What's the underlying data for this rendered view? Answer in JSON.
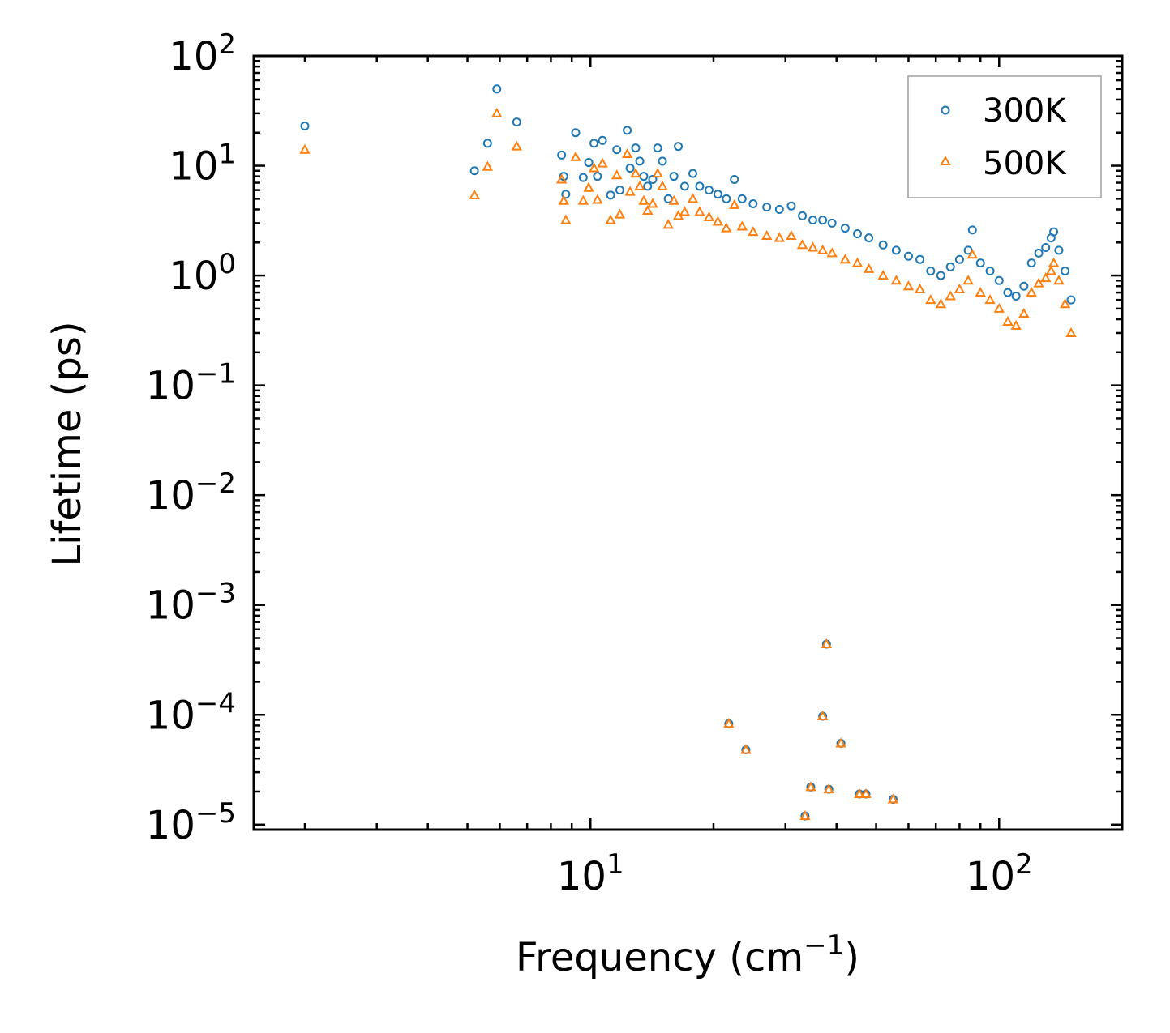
{
  "chart_data": {
    "type": "scatter",
    "xscale": "log",
    "yscale": "log",
    "xlabel": "Frequency (cm",
    "xlabel_sup": "−1",
    "xlabel_tail": ")",
    "ylabel": "Lifetime (ps)",
    "xlim": [
      1.5,
      200
    ],
    "ylim": [
      9e-06,
      100
    ],
    "grid": false,
    "legend_position": "top-right",
    "x_ticks": [
      {
        "value": 10,
        "base": "10",
        "exp": "1"
      },
      {
        "value": 100,
        "base": "10",
        "exp": "2"
      }
    ],
    "y_ticks": [
      {
        "value": 100,
        "base": "10",
        "exp": "2"
      },
      {
        "value": 10,
        "base": "10",
        "exp": "1"
      },
      {
        "value": 1,
        "base": "10",
        "exp": "0"
      },
      {
        "value": 0.1,
        "base": "10",
        "exp": "−1"
      },
      {
        "value": 0.01,
        "base": "10",
        "exp": "−2"
      },
      {
        "value": 0.001,
        "base": "10",
        "exp": "−3"
      },
      {
        "value": 0.0001,
        "base": "10",
        "exp": "−4"
      },
      {
        "value": 1e-05,
        "base": "10",
        "exp": "−5"
      }
    ],
    "series": [
      {
        "name": "300K",
        "color": "#1f77b4",
        "marker": "circle",
        "points": [
          [
            2.0,
            23
          ],
          [
            5.2,
            9.0
          ],
          [
            5.6,
            16
          ],
          [
            5.9,
            50
          ],
          [
            6.6,
            25
          ],
          [
            8.5,
            12.5
          ],
          [
            8.6,
            8
          ],
          [
            8.7,
            5.5
          ],
          [
            9.2,
            20
          ],
          [
            9.6,
            7.8
          ],
          [
            9.9,
            10.7
          ],
          [
            10.2,
            16
          ],
          [
            10.4,
            8
          ],
          [
            10.7,
            17
          ],
          [
            11.2,
            5.4
          ],
          [
            11.6,
            14
          ],
          [
            11.8,
            6
          ],
          [
            12.3,
            21
          ],
          [
            12.5,
            9.5
          ],
          [
            12.9,
            14.5
          ],
          [
            13.2,
            11
          ],
          [
            13.5,
            8
          ],
          [
            13.8,
            6.5
          ],
          [
            14.2,
            7.5
          ],
          [
            14.6,
            14.5
          ],
          [
            15.0,
            11
          ],
          [
            15.5,
            5
          ],
          [
            16.0,
            8
          ],
          [
            16.4,
            15
          ],
          [
            17.0,
            6.5
          ],
          [
            17.8,
            8.5
          ],
          [
            18.5,
            6.5
          ],
          [
            19.5,
            6
          ],
          [
            20.5,
            5.5
          ],
          [
            21.5,
            5
          ],
          [
            22.5,
            7.5
          ],
          [
            23.5,
            5
          ],
          [
            25,
            4.5
          ],
          [
            27,
            4.2
          ],
          [
            29,
            4
          ],
          [
            31,
            4.3
          ],
          [
            33,
            3.5
          ],
          [
            35,
            3.2
          ],
          [
            37,
            3.2
          ],
          [
            39,
            3
          ],
          [
            42,
            2.7
          ],
          [
            45,
            2.4
          ],
          [
            48,
            2.2
          ],
          [
            52,
            1.9
          ],
          [
            56,
            1.7
          ],
          [
            60,
            1.5
          ],
          [
            64,
            1.4
          ],
          [
            68,
            1.1
          ],
          [
            72,
            1.0
          ],
          [
            76,
            1.2
          ],
          [
            80,
            1.4
          ],
          [
            84,
            1.7
          ],
          [
            86,
            2.6
          ],
          [
            90,
            1.3
          ],
          [
            95,
            1.1
          ],
          [
            100,
            0.9
          ],
          [
            105,
            0.7
          ],
          [
            110,
            0.65
          ],
          [
            115,
            0.8
          ],
          [
            120,
            1.3
          ],
          [
            125,
            1.6
          ],
          [
            130,
            1.8
          ],
          [
            134,
            2.2
          ],
          [
            136,
            2.5
          ],
          [
            140,
            1.7
          ],
          [
            145,
            1.1
          ],
          [
            150,
            0.6
          ],
          [
            21.8,
            8.3e-05
          ],
          [
            24.0,
            4.8e-05
          ],
          [
            33.5,
            1.2e-05
          ],
          [
            34.6,
            2.2e-05
          ],
          [
            37.0,
            9.7e-05
          ],
          [
            37.8,
            0.00044
          ],
          [
            38.3,
            2.1e-05
          ],
          [
            41.0,
            5.5e-05
          ],
          [
            45.5,
            1.9e-05
          ],
          [
            47.2,
            1.9e-05
          ],
          [
            55.0,
            1.7e-05
          ]
        ]
      },
      {
        "name": "500K",
        "color": "#ff7f0e",
        "marker": "triangle",
        "points": [
          [
            2.0,
            14
          ],
          [
            5.2,
            5.4
          ],
          [
            5.6,
            9.8
          ],
          [
            5.9,
            30
          ],
          [
            6.6,
            15
          ],
          [
            8.5,
            7.5
          ],
          [
            8.6,
            4.8
          ],
          [
            8.7,
            3.2
          ],
          [
            9.2,
            12
          ],
          [
            9.6,
            4.8
          ],
          [
            9.9,
            6.3
          ],
          [
            10.2,
            9.5
          ],
          [
            10.4,
            4.9
          ],
          [
            10.7,
            10.5
          ],
          [
            11.2,
            3.2
          ],
          [
            11.6,
            8.2
          ],
          [
            11.8,
            3.6
          ],
          [
            12.3,
            12.8
          ],
          [
            12.5,
            5.8
          ],
          [
            12.9,
            8.5
          ],
          [
            13.2,
            6.5
          ],
          [
            13.5,
            4.8
          ],
          [
            13.8,
            3.9
          ],
          [
            14.2,
            4.5
          ],
          [
            14.6,
            8.5
          ],
          [
            15.0,
            6.5
          ],
          [
            15.5,
            2.9
          ],
          [
            16.0,
            4.8
          ],
          [
            16.4,
            3.5
          ],
          [
            17.0,
            3.8
          ],
          [
            17.8,
            5
          ],
          [
            18.5,
            3.8
          ],
          [
            19.5,
            3.4
          ],
          [
            20.5,
            3.1
          ],
          [
            21.5,
            2.7
          ],
          [
            22.5,
            4.4
          ],
          [
            23.5,
            2.8
          ],
          [
            25,
            2.5
          ],
          [
            27,
            2.3
          ],
          [
            29,
            2.2
          ],
          [
            31,
            2.3
          ],
          [
            33,
            1.9
          ],
          [
            35,
            1.8
          ],
          [
            37,
            1.7
          ],
          [
            39,
            1.6
          ],
          [
            42,
            1.4
          ],
          [
            45,
            1.3
          ],
          [
            48,
            1.15
          ],
          [
            52,
            1.0
          ],
          [
            56,
            0.9
          ],
          [
            60,
            0.8
          ],
          [
            64,
            0.75
          ],
          [
            68,
            0.6
          ],
          [
            72,
            0.55
          ],
          [
            76,
            0.65
          ],
          [
            80,
            0.75
          ],
          [
            84,
            0.9
          ],
          [
            86,
            1.55
          ],
          [
            90,
            0.7
          ],
          [
            95,
            0.6
          ],
          [
            100,
            0.5
          ],
          [
            105,
            0.38
          ],
          [
            110,
            0.35
          ],
          [
            115,
            0.45
          ],
          [
            120,
            0.7
          ],
          [
            125,
            0.85
          ],
          [
            130,
            0.95
          ],
          [
            134,
            1.1
          ],
          [
            136,
            1.3
          ],
          [
            140,
            0.9
          ],
          [
            145,
            0.55
          ],
          [
            150,
            0.3
          ],
          [
            21.8,
            8.3e-05
          ],
          [
            24.0,
            4.8e-05
          ],
          [
            33.5,
            1.2e-05
          ],
          [
            34.6,
            2.2e-05
          ],
          [
            37.0,
            9.7e-05
          ],
          [
            37.8,
            0.00044
          ],
          [
            38.3,
            2.1e-05
          ],
          [
            41.0,
            5.5e-05
          ],
          [
            45.5,
            1.9e-05
          ],
          [
            47.2,
            1.9e-05
          ],
          [
            55.0,
            1.7e-05
          ]
        ]
      }
    ]
  }
}
